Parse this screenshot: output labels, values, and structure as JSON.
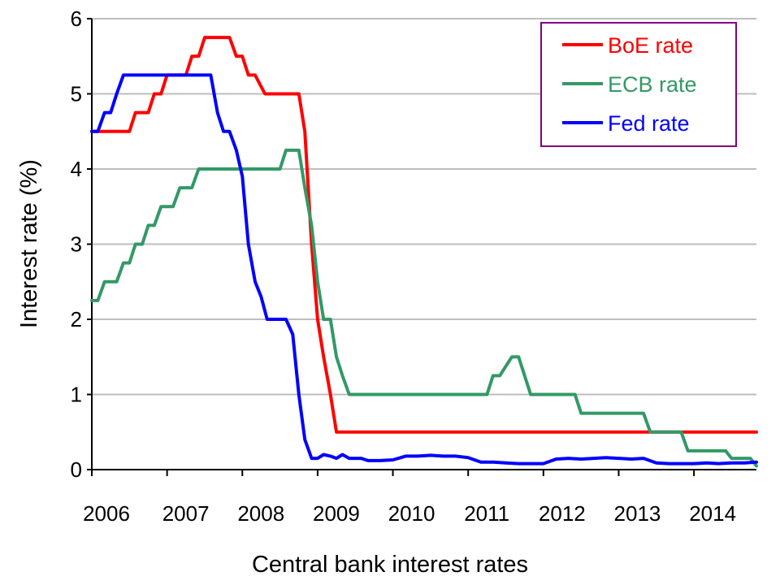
{
  "chart_data": {
    "type": "line",
    "title": "",
    "xlabel": "Central bank interest rates",
    "ylabel": "Interest rate (%)",
    "xlim": [
      2006.0,
      2014.83
    ],
    "ylim": [
      0,
      6
    ],
    "x_ticks": [
      "2006",
      "2007",
      "2008",
      "2009",
      "2010",
      "2011",
      "2012",
      "2013",
      "2014"
    ],
    "y_ticks": [
      "0",
      "1",
      "2",
      "3",
      "4",
      "5",
      "6"
    ],
    "grid": "horizontal",
    "legend_position": "top-right",
    "series": [
      {
        "name": "BoE rate",
        "color": "#ff0000",
        "x": [
          2006.0,
          2006.5,
          2006.58,
          2006.75,
          2006.83,
          2006.92,
          2007.0,
          2007.08,
          2007.25,
          2007.33,
          2007.42,
          2007.5,
          2007.58,
          2007.83,
          2007.92,
          2008.0,
          2008.08,
          2008.17,
          2008.3,
          2008.75,
          2008.83,
          2008.92,
          2009.0,
          2009.08,
          2009.17,
          2009.25,
          2014.83
        ],
        "y": [
          4.5,
          4.5,
          4.75,
          4.75,
          5.0,
          5.0,
          5.25,
          5.25,
          5.25,
          5.5,
          5.5,
          5.75,
          5.75,
          5.75,
          5.5,
          5.5,
          5.25,
          5.25,
          5.0,
          5.0,
          4.5,
          3.0,
          2.0,
          1.5,
          1.0,
          0.5,
          0.5
        ]
      },
      {
        "name": "ECB rate",
        "color": "#339966",
        "x": [
          2006.0,
          2006.08,
          2006.17,
          2006.33,
          2006.42,
          2006.5,
          2006.58,
          2006.67,
          2006.75,
          2006.83,
          2006.92,
          2007.0,
          2007.08,
          2007.17,
          2007.25,
          2007.33,
          2007.42,
          2007.5,
          2008.5,
          2008.58,
          2008.75,
          2008.83,
          2008.92,
          2009.0,
          2009.08,
          2009.17,
          2009.25,
          2009.33,
          2009.42,
          2011.25,
          2011.33,
          2011.42,
          2011.58,
          2011.67,
          2011.75,
          2011.83,
          2011.92,
          2012.42,
          2012.5,
          2013.33,
          2013.42,
          2013.83,
          2013.92,
          2014.42,
          2014.5,
          2014.75,
          2014.83
        ],
        "y": [
          2.25,
          2.25,
          2.5,
          2.5,
          2.75,
          2.75,
          3.0,
          3.0,
          3.25,
          3.25,
          3.5,
          3.5,
          3.5,
          3.75,
          3.75,
          3.75,
          4.0,
          4.0,
          4.0,
          4.25,
          4.25,
          3.75,
          3.25,
          2.5,
          2.0,
          2.0,
          1.5,
          1.25,
          1.0,
          1.0,
          1.25,
          1.25,
          1.5,
          1.5,
          1.25,
          1.0,
          1.0,
          1.0,
          0.75,
          0.75,
          0.5,
          0.5,
          0.25,
          0.25,
          0.15,
          0.15,
          0.05
        ]
      },
      {
        "name": "Fed rate",
        "color": "#0000ff",
        "x": [
          2006.0,
          2006.08,
          2006.17,
          2006.25,
          2006.33,
          2006.42,
          2007.58,
          2007.67,
          2007.75,
          2007.83,
          2007.92,
          2008.0,
          2008.08,
          2008.17,
          2008.25,
          2008.33,
          2008.5,
          2008.58,
          2008.67,
          2008.75,
          2008.83,
          2008.92,
          2009.0,
          2009.08,
          2009.17,
          2009.25,
          2009.33,
          2009.42,
          2009.5,
          2009.58,
          2009.67,
          2009.75,
          2009.83,
          2010.0,
          2010.17,
          2010.33,
          2010.5,
          2010.67,
          2010.83,
          2011.0,
          2011.17,
          2011.33,
          2011.5,
          2011.67,
          2011.83,
          2012.0,
          2012.17,
          2012.33,
          2012.5,
          2012.67,
          2012.83,
          2013.0,
          2013.17,
          2013.33,
          2013.5,
          2013.67,
          2013.83,
          2014.0,
          2014.17,
          2014.33,
          2014.5,
          2014.67,
          2014.83
        ],
        "y": [
          4.5,
          4.5,
          4.75,
          4.75,
          5.0,
          5.25,
          5.25,
          4.75,
          4.5,
          4.5,
          4.25,
          3.9,
          3.0,
          2.5,
          2.3,
          2.0,
          2.0,
          2.0,
          1.8,
          1.0,
          0.4,
          0.15,
          0.15,
          0.2,
          0.18,
          0.15,
          0.2,
          0.15,
          0.15,
          0.15,
          0.12,
          0.12,
          0.12,
          0.13,
          0.18,
          0.18,
          0.19,
          0.18,
          0.18,
          0.16,
          0.1,
          0.1,
          0.09,
          0.08,
          0.08,
          0.08,
          0.14,
          0.15,
          0.14,
          0.15,
          0.16,
          0.15,
          0.14,
          0.15,
          0.09,
          0.08,
          0.08,
          0.08,
          0.09,
          0.08,
          0.09,
          0.09,
          0.1
        ]
      }
    ]
  }
}
